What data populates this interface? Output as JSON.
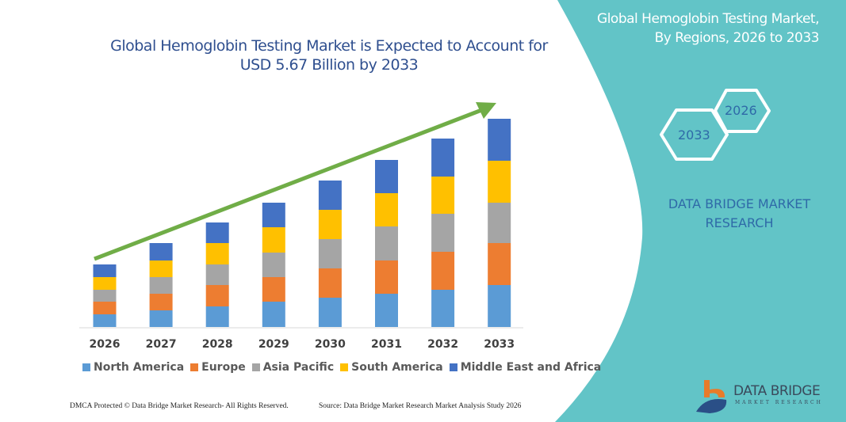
{
  "chart_data": {
    "type": "bar",
    "stacked": true,
    "title": "Global Hemoglobin Testing Market is Expected to Account for USD 5.67 Billion by 2033",
    "categories": [
      "2026",
      "2027",
      "2028",
      "2029",
      "2030",
      "2031",
      "2032",
      "2033"
    ],
    "series": [
      {
        "name": "North America",
        "color": "#5b9bd5",
        "values": [
          16,
          21,
          26,
          32,
          37,
          42,
          47,
          53
        ]
      },
      {
        "name": "Europe",
        "color": "#ed7d31",
        "values": [
          16,
          21,
          27,
          31,
          37,
          42,
          48,
          53
        ]
      },
      {
        "name": "Asia Pacific",
        "color": "#a5a5a5",
        "values": [
          15,
          21,
          26,
          31,
          37,
          43,
          48,
          51
        ]
      },
      {
        "name": "South America",
        "color": "#ffc000",
        "values": [
          16,
          21,
          27,
          32,
          37,
          42,
          47,
          53
        ]
      },
      {
        "name": "Middle East and Africa",
        "color": "#4472c4",
        "values": [
          16,
          22,
          26,
          31,
          37,
          42,
          48,
          53
        ]
      }
    ],
    "y_axis_shown": false,
    "ylim": [
      0,
      270
    ],
    "grid": false,
    "legend_placement": "bottom",
    "trend_arrow_color": "#70ad47"
  },
  "panel": {
    "title_line1": "Global Hemoglobin Testing Market,",
    "title_line2": "By Regions, 2026 to 2033",
    "hex_start": "2026",
    "hex_end": "2033",
    "brand_line1": "DATA BRIDGE MARKET",
    "brand_line2": "RESEARCH",
    "color": "#62c4c7"
  },
  "logo": {
    "name": "DATA BRIDGE",
    "tagline": "MARKET RESEARCH"
  },
  "footer": {
    "left": "DMCA Protected © Data Bridge Market Research-  All Rights Reserved.",
    "right": "Source: Data Bridge Market Research  Market Analysis Study 2026"
  }
}
